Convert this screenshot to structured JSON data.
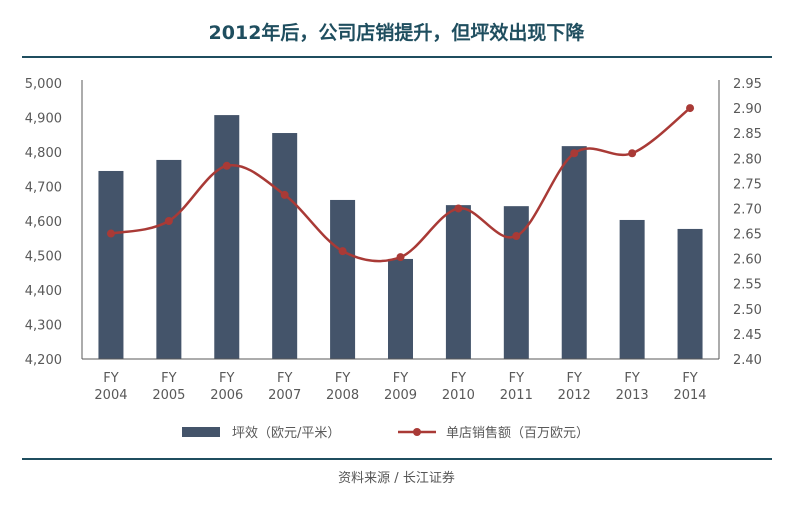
{
  "chart_data": {
    "type": "bar+line",
    "title": "2012年后，公司店销提升，但坪效出现下降",
    "categories": [
      [
        "FY",
        "2004"
      ],
      [
        "FY",
        "2005"
      ],
      [
        "FY",
        "2006"
      ],
      [
        "FY",
        "2007"
      ],
      [
        "FY",
        "2008"
      ],
      [
        "FY",
        "2009"
      ],
      [
        "FY",
        "2010"
      ],
      [
        "FY",
        "2011"
      ],
      [
        "FY",
        "2012"
      ],
      [
        "FY",
        "2013"
      ],
      [
        "FY",
        "2014"
      ]
    ],
    "series": [
      {
        "name": "坪效（欧元/平米）",
        "type": "bar",
        "axis": "left",
        "color": "#44546a",
        "values": [
          4745,
          4777,
          4907,
          4855,
          4661,
          4490,
          4646,
          4643,
          4817,
          4603,
          4577
        ]
      },
      {
        "name": "单店销售额（百万欧元）",
        "type": "line",
        "axis": "right",
        "color": "#a93a36",
        "values": [
          2.65,
          2.675,
          2.785,
          2.727,
          2.615,
          2.603,
          2.7,
          2.645,
          2.81,
          2.81,
          2.9
        ]
      }
    ],
    "ylim_left": [
      4200,
      5000
    ],
    "yticks_left": [
      "4,200",
      "4,300",
      "4,400",
      "4,500",
      "4,600",
      "4,700",
      "4,800",
      "4,900",
      "5,000"
    ],
    "ylim_right": [
      2.4,
      2.95
    ],
    "yticks_right": [
      "2.40",
      "2.45",
      "2.50",
      "2.55",
      "2.60",
      "2.65",
      "2.70",
      "2.75",
      "2.80",
      "2.85",
      "2.90",
      "2.95"
    ],
    "legend": "bottom",
    "grid": false
  },
  "source": "资料来源 / 长江证券"
}
